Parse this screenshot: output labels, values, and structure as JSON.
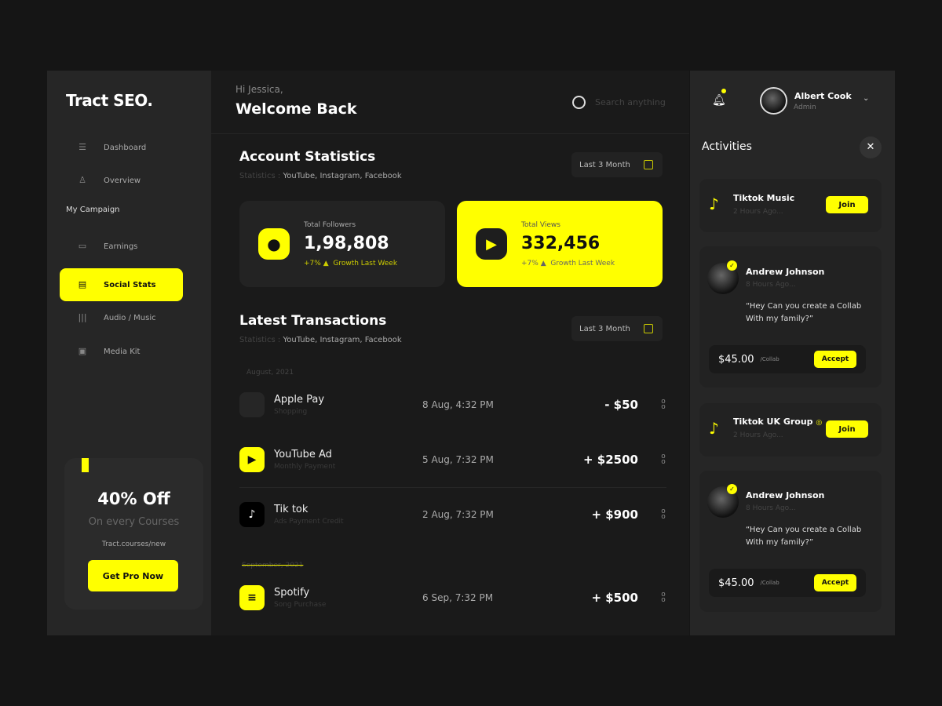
{
  "brand": "Tract SEO.",
  "sidebar": {
    "items": [
      {
        "label": "Dashboard",
        "icon": "sliders-icon"
      },
      {
        "label": "Overview",
        "icon": "user-icon"
      },
      {
        "label": "Earnings",
        "icon": "wallet-icon"
      },
      {
        "label": "Social Stats",
        "icon": "chat-icon",
        "active": true
      },
      {
        "label": "Audio / Music",
        "icon": "waveform-icon"
      },
      {
        "label": "Media Kit",
        "icon": "box-icon"
      }
    ],
    "section": "My Campaign"
  },
  "promo": {
    "title": "40% Off",
    "subtitle": "On every Courses",
    "link": "Tract.courses/new",
    "button": "Get Pro Now"
  },
  "header": {
    "greeting": "Hi Jessica,",
    "welcome": "Welcome Back",
    "search_placeholder": "Search anything"
  },
  "account": {
    "title": "Account Statistics",
    "sub_label": "Statistics :",
    "sub_value": "YouTube, Instagram, Facebook",
    "range": "Last 3 Month",
    "cards": [
      {
        "label": "Total Followers",
        "value": "1,98,808",
        "growth": "+7%",
        "growth_text": "Growth Last Week"
      },
      {
        "label": "Total Views",
        "value": "332,456",
        "growth": "+7%",
        "growth_text": "Growth Last Week"
      }
    ]
  },
  "transactions": {
    "title": "Latest Transactions",
    "sub_label": "Statistics :",
    "sub_value": "YouTube, Instagram, Facebook",
    "range": "Last 3 Month",
    "groups": [
      "August, 2021",
      "September, 2021"
    ],
    "rows": [
      {
        "name": "Apple Pay",
        "desc": "Shopping",
        "date": "8 Aug, 4:32 PM",
        "amount": "- $50"
      },
      {
        "name": "YouTube Ad",
        "desc": "Monthly Payment",
        "date": "5 Aug, 7:32 PM",
        "amount": "+ $2500"
      },
      {
        "name": "Tik tok",
        "desc": "Ads Payment Credit",
        "date": "2 Aug, 7:32 PM",
        "amount": "+ $900"
      },
      {
        "name": "Spotify",
        "desc": "Song Purchase",
        "date": "6 Sep, 7:32 PM",
        "amount": "+ $500"
      }
    ]
  },
  "user": {
    "name": "Albert Cook",
    "role": "Admin"
  },
  "activities": {
    "title": "Activities",
    "items": [
      {
        "title": "Tiktok Music",
        "time": "2 Hours Ago...",
        "button": "Join"
      },
      {
        "name": "Andrew Johnson",
        "time": "8 Hours Ago...",
        "message": "“Hey Can you create a Collab With my family?”",
        "price": "$45.00",
        "unit": "/Collab",
        "button": "Accept"
      },
      {
        "title": "Tiktok UK Group",
        "time": "2 Hours Ago...",
        "button": "Join"
      },
      {
        "name": "Andrew Johnson",
        "time": "8 Hours Ago...",
        "message": "“Hey Can you create a Collab With my family?”",
        "price": "$45.00",
        "unit": "/Collab",
        "button": "Accept"
      }
    ]
  },
  "colors": {
    "accent": "#ffff00",
    "background": "#151515",
    "panel": "#262626"
  }
}
